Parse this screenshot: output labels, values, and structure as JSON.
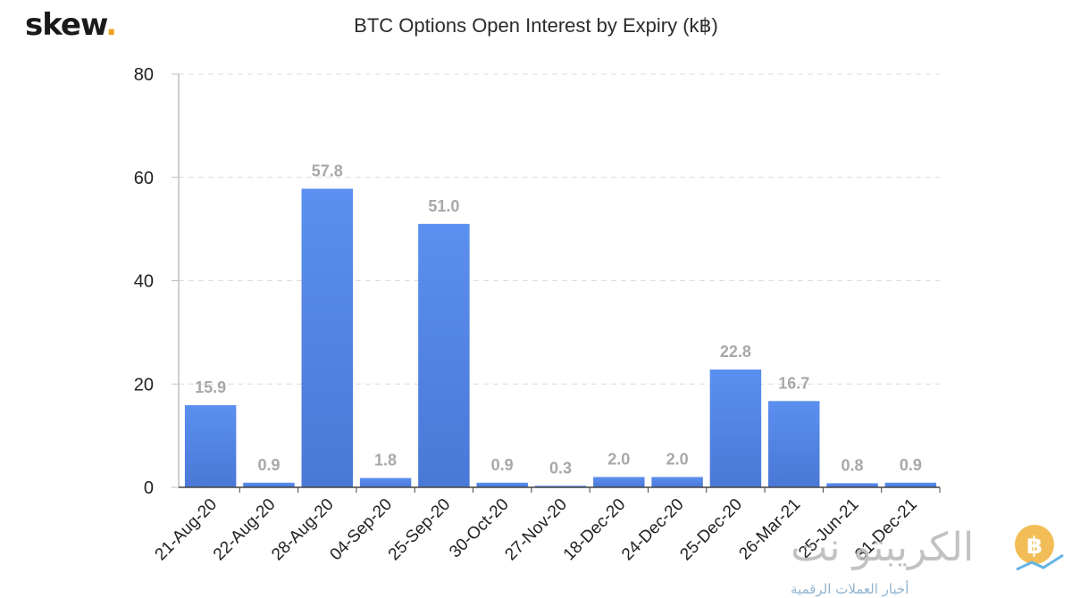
{
  "logo": {
    "text": "skew",
    "dot": "."
  },
  "chart_data": {
    "type": "bar",
    "title": "BTC Options Open Interest by Expiry (k฿)",
    "xlabel": "",
    "ylabel": "",
    "categories": [
      "21-Aug-20",
      "22-Aug-20",
      "28-Aug-20",
      "04-Sep-20",
      "25-Sep-20",
      "30-Oct-20",
      "27-Nov-20",
      "18-Dec-20",
      "24-Dec-20",
      "25-Dec-20",
      "26-Mar-21",
      "25-Jun-21",
      "31-Dec-21"
    ],
    "values": [
      15.9,
      0.9,
      57.8,
      1.8,
      51.0,
      0.9,
      0.3,
      2.0,
      2.0,
      22.8,
      16.7,
      0.8,
      0.9
    ],
    "value_labels": [
      "15.9",
      "0.9",
      "57.8",
      "1.8",
      "51.0",
      "0.9",
      "0.3",
      "2.0",
      "2.0",
      "22.8",
      "16.7",
      "0.8",
      "0.9"
    ],
    "ylim": [
      0,
      80
    ],
    "yticks": [
      0,
      20,
      40,
      60,
      80
    ],
    "grid": true,
    "bar_color": "#5b8ff0",
    "bar_color_bottom": "#4a78d6",
    "label_color": "#a8a8a8"
  },
  "watermark": {
    "text_ar": "الكريبتو نت",
    "subtitle_ar": "أخبار العملات الرقمية",
    "coin_symbol": "฿"
  }
}
